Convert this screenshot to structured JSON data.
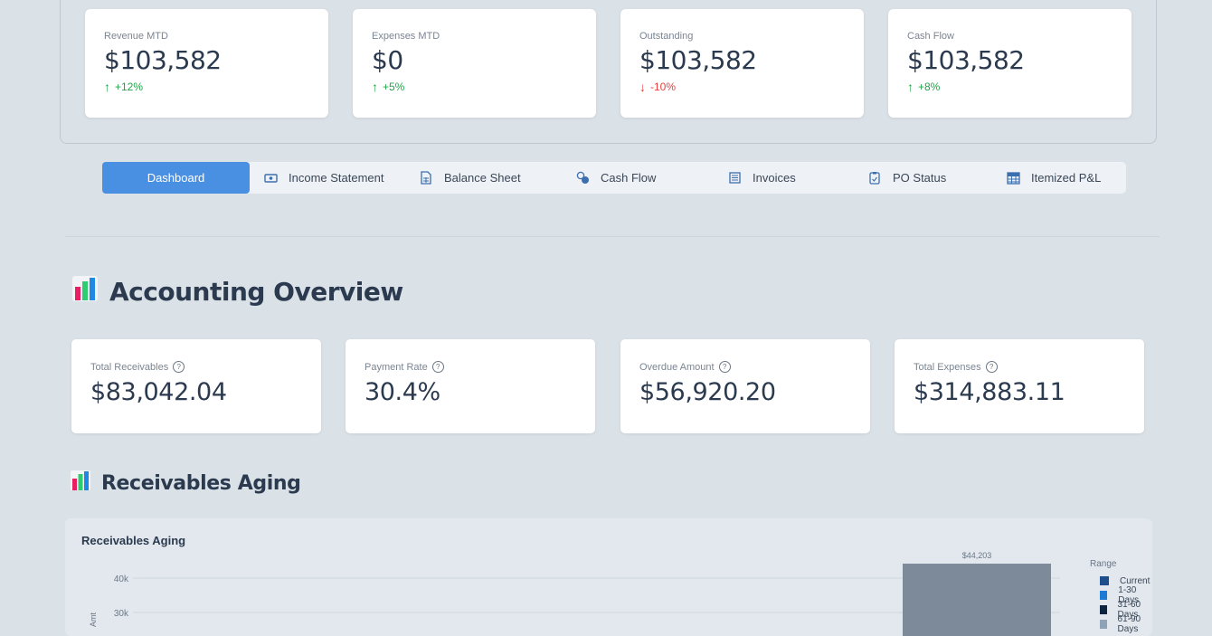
{
  "kpis": [
    {
      "label": "Revenue MTD",
      "value": "$103,582",
      "delta": "+12%",
      "direction": "up"
    },
    {
      "label": "Expenses MTD",
      "value": "$0",
      "delta": "+5%",
      "direction": "up"
    },
    {
      "label": "Outstanding",
      "value": "$103,582",
      "delta": "-10%",
      "direction": "down"
    },
    {
      "label": "Cash Flow",
      "value": "$103,582",
      "delta": "+8%",
      "direction": "up"
    }
  ],
  "tabs": [
    {
      "label": "Dashboard",
      "icon": "none",
      "active": true
    },
    {
      "label": "Income Statement",
      "icon": "cash-icon"
    },
    {
      "label": "Balance Sheet",
      "icon": "spreadsheet-file-icon"
    },
    {
      "label": "Cash Flow",
      "icon": "coins-icon"
    },
    {
      "label": "Invoices",
      "icon": "invoice-icon"
    },
    {
      "label": "PO Status",
      "icon": "clipboard-icon"
    },
    {
      "label": "Itemized P&L",
      "icon": "table-icon"
    }
  ],
  "overview": {
    "title": "Accounting Overview",
    "icon": "bar-chart-icon",
    "metrics": [
      {
        "label": "Total Receivables",
        "value": "$83,042.04"
      },
      {
        "label": "Payment Rate",
        "value": "30.4%"
      },
      {
        "label": "Overdue Amount",
        "value": "$56,920.20"
      },
      {
        "label": "Total Expenses",
        "value": "$314,883.11"
      }
    ]
  },
  "aging": {
    "section_title": "Receivables Aging",
    "chart_title": "Receivables Aging",
    "bar_label": "$44,203",
    "legend_title": "Range",
    "legend": [
      {
        "label": "Current",
        "color": "#1f4e8c"
      },
      {
        "label": "1-30 Days",
        "color": "#1c7ad4"
      },
      {
        "label": "31-60 Days",
        "color": "#0d2440"
      },
      {
        "label": "61-90 Days",
        "color": "#8fa3b8"
      }
    ]
  },
  "chart_data": {
    "type": "bar",
    "title": "Receivables Aging",
    "ytick_labels": [
      "40k",
      "30k"
    ],
    "visible_bar_value": 44203,
    "legend_title": "Range",
    "series_names": [
      "Current",
      "1-30 Days",
      "31-60 Days",
      "61-90 Days"
    ]
  },
  "colors": {
    "accent": "#4a90e2",
    "up": "#22a34a",
    "down": "#e53e3e",
    "bar": "#7d8a99"
  }
}
